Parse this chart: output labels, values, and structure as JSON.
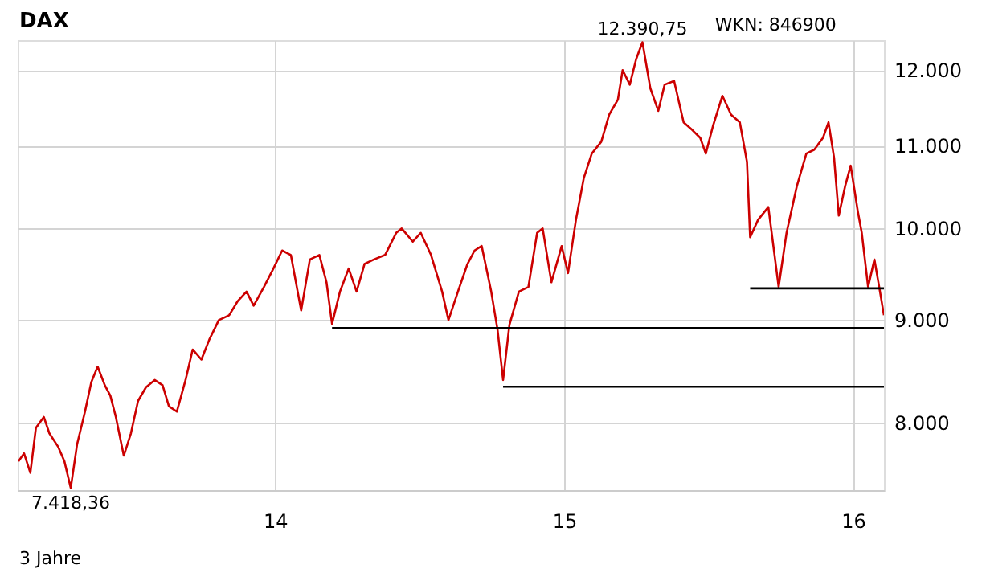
{
  "chart_data": {
    "type": "line",
    "title": "DAX",
    "xlim": [
      "2013-02-10",
      "2016-02-09"
    ],
    "xticks": [
      {
        "value": "2014-01-01",
        "label": "14"
      },
      {
        "value": "2015-01-01",
        "label": "15"
      },
      {
        "value": "2016-01-01",
        "label": "16"
      }
    ],
    "ylim": [
      7400,
      12420
    ],
    "log": true,
    "yticks": [
      {
        "value": 8000,
        "label": "8.000"
      },
      {
        "value": 9000,
        "label": "9.000"
      },
      {
        "value": 10000,
        "label": "10.000"
      },
      {
        "value": 11000,
        "label": "11.000"
      },
      {
        "value": 12000,
        "label": "12.000"
      }
    ],
    "grid": true,
    "series": [
      {
        "color": "#cc0000",
        "x": [
          "2013-02-11",
          "2013-02-18",
          "2013-02-26",
          "2013-03-05",
          "2013-03-15",
          "2013-03-22",
          "2013-04-02",
          "2013-04-10",
          "2013-04-18",
          "2013-04-26",
          "2013-05-06",
          "2013-05-14",
          "2013-05-22",
          "2013-05-31",
          "2013-06-07",
          "2013-06-14",
          "2013-06-24",
          "2013-07-03",
          "2013-07-12",
          "2013-07-22",
          "2013-08-02",
          "2013-08-12",
          "2013-08-20",
          "2013-08-30",
          "2013-09-10",
          "2013-09-19",
          "2013-09-30",
          "2013-10-10",
          "2013-10-22",
          "2013-11-04",
          "2013-11-15",
          "2013-11-26",
          "2013-12-05",
          "2013-12-18",
          "2013-12-30",
          "2014-01-10",
          "2014-01-21",
          "2014-02-03",
          "2014-02-14",
          "2014-02-26",
          "2014-03-07",
          "2014-03-14",
          "2014-03-24",
          "2014-04-04",
          "2014-04-14",
          "2014-04-24",
          "2014-05-06",
          "2014-05-20",
          "2014-06-03",
          "2014-06-10",
          "2014-06-24",
          "2014-07-04",
          "2014-07-17",
          "2014-07-31",
          "2014-08-08",
          "2014-08-20",
          "2014-09-01",
          "2014-09-10",
          "2014-09-19",
          "2014-10-01",
          "2014-10-09",
          "2014-10-16",
          "2014-10-24",
          "2014-11-05",
          "2014-11-17",
          "2014-11-28",
          "2014-12-05",
          "2014-12-16",
          "2014-12-29",
          "2015-01-06",
          "2015-01-16",
          "2015-01-26",
          "2015-02-05",
          "2015-02-17",
          "2015-02-27",
          "2015-03-10",
          "2015-03-16",
          "2015-03-25",
          "2015-04-02",
          "2015-04-10",
          "2015-04-20",
          "2015-04-30",
          "2015-05-08",
          "2015-05-20",
          "2015-06-01",
          "2015-06-12",
          "2015-06-22",
          "2015-06-29",
          "2015-07-08",
          "2015-07-20",
          "2015-07-31",
          "2015-08-11",
          "2015-08-20",
          "2015-08-24",
          "2015-09-03",
          "2015-09-16",
          "2015-09-29",
          "2015-10-09",
          "2015-10-22",
          "2015-11-03",
          "2015-11-13",
          "2015-11-24",
          "2015-12-01",
          "2015-12-08",
          "2015-12-14",
          "2015-12-22",
          "2015-12-29",
          "2016-01-07",
          "2016-01-12",
          "2016-01-20",
          "2016-01-28",
          "2016-02-04",
          "2016-02-09"
        ],
        "values": [
          7650,
          7720,
          7550,
          7950,
          8050,
          7900,
          7780,
          7650,
          7418.36,
          7800,
          8100,
          8380,
          8530,
          8350,
          8250,
          8050,
          7700,
          7900,
          8200,
          8330,
          8400,
          8350,
          8150,
          8100,
          8400,
          8700,
          8600,
          8800,
          9000,
          9050,
          9200,
          9300,
          9150,
          9350,
          9550,
          9750,
          9700,
          9100,
          9650,
          9700,
          9400,
          8960,
          9300,
          9550,
          9300,
          9600,
          9650,
          9700,
          9950,
          10000,
          9850,
          9950,
          9700,
          9300,
          9000,
          9300,
          9600,
          9750,
          9800,
          9300,
          8900,
          8400,
          8950,
          9300,
          9350,
          9950,
          10000,
          9400,
          9800,
          9500,
          10100,
          10600,
          10900,
          11050,
          11400,
          11600,
          12000,
          11800,
          12150,
          12390.75,
          11750,
          11450,
          11800,
          11850,
          11300,
          11200,
          11100,
          10900,
          11250,
          11650,
          11400,
          11300,
          10800,
          9900,
          10100,
          10250,
          9350,
          9950,
          10500,
          10900,
          10950,
          11100,
          11300,
          10850,
          10150,
          10500,
          10750,
          10200,
          9950,
          9350,
          9650,
          9300,
          9050
        ]
      },
      {
        "color": "#000000",
        "x": [
          "2014-03-14",
          "2016-02-09"
        ],
        "values": [
          8918,
          8918
        ]
      },
      {
        "color": "#000000",
        "x": [
          "2014-10-16",
          "2016-02-09"
        ],
        "values": [
          8336,
          8336
        ]
      },
      {
        "color": "#000000",
        "x": [
          "2015-08-24",
          "2016-02-09"
        ],
        "values": [
          9334,
          9334
        ]
      }
    ],
    "annotations": [
      {
        "text": "12.390,75",
        "x": "2015-04-10",
        "y": 12390.75
      },
      {
        "text": "7.418,36",
        "x": "2013-04-18",
        "y": 7418.36
      },
      "WKN: 846900",
      "3 Jahre"
    ]
  }
}
